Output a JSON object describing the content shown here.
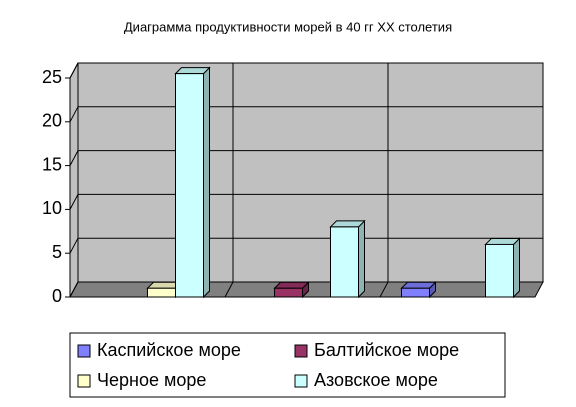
{
  "chart_data": {
    "type": "bar3d",
    "title": "Диаграмма продуктивности морей в 40 гг XX столетия",
    "categories": [
      null,
      null,
      null
    ],
    "series": [
      {
        "name": "Каспийское море",
        "color": "#8080ff",
        "values": [
          null,
          null,
          1
        ]
      },
      {
        "name": "Балтийское море",
        "color": "#993366",
        "values": [
          null,
          1,
          null
        ]
      },
      {
        "name": "Черное море",
        "color": "#ffffcc",
        "values": [
          1,
          null,
          null
        ]
      },
      {
        "name": "Азовское море",
        "color": "#ccffff",
        "values": [
          25.5,
          8,
          6
        ]
      }
    ],
    "ylim": [
      0,
      25
    ],
    "yticks": [
      0,
      5,
      10,
      15,
      20,
      25
    ],
    "grid": true,
    "legend": "bottom"
  }
}
